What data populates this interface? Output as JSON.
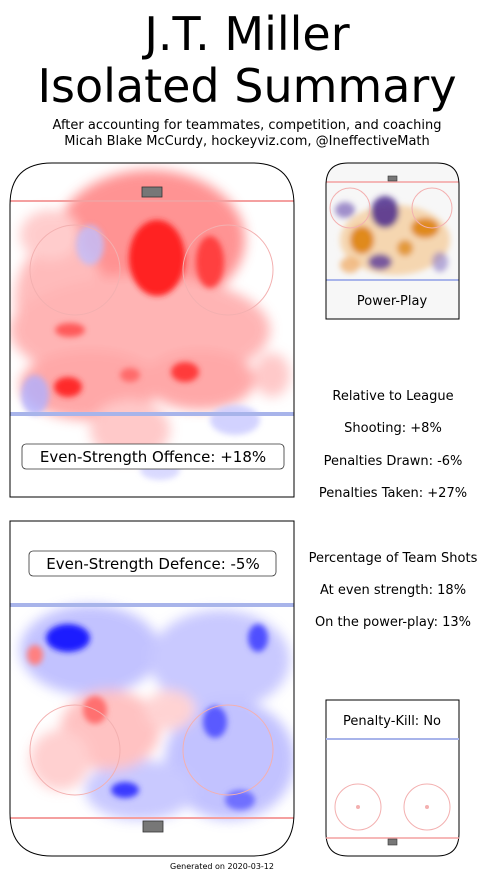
{
  "header": {
    "title_line1": "J.T. Miller",
    "title_line2": "Isolated Summary",
    "subtitle_line1": "After accounting for teammates, competition, and coaching",
    "subtitle_line2": "Micah Blake McCurdy, hockeyviz.com, @IneffectiveMath"
  },
  "panels": {
    "offence_label": "Even-Strength Offence: +18%",
    "defence_label": "Even-Strength Defence: -5%",
    "powerplay_label": "Power-Play",
    "penaltykill_label": "Penalty-Kill: No"
  },
  "stats": {
    "relative_heading": "Relative to League",
    "shooting": "Shooting: +8%",
    "penalties_drawn": "Penalties Drawn: -6%",
    "penalties_taken": "Penalties Taken: +27%",
    "share_heading": "Percentage of Team Shots",
    "even_strength_share": "At even strength: 18%",
    "powerplay_share": "On the power-play: 13%"
  },
  "footer": {
    "generated": "Generated on 2020-03-12"
  },
  "chart_data": {
    "type": "heatmap",
    "title": "J.T. Miller Isolated Summary",
    "panels": [
      {
        "name": "Even-Strength Offence",
        "value_percent": 18
      },
      {
        "name": "Even-Strength Defence",
        "value_percent": -5
      },
      {
        "name": "Power-Play"
      },
      {
        "name": "Penalty-Kill",
        "value": "No"
      }
    ],
    "colors": {
      "more_shots": "#ff0000",
      "fewer_shots": "#0000ff",
      "pp_more": "#e08a1e",
      "pp_fewer": "#4b2a8c"
    }
  }
}
